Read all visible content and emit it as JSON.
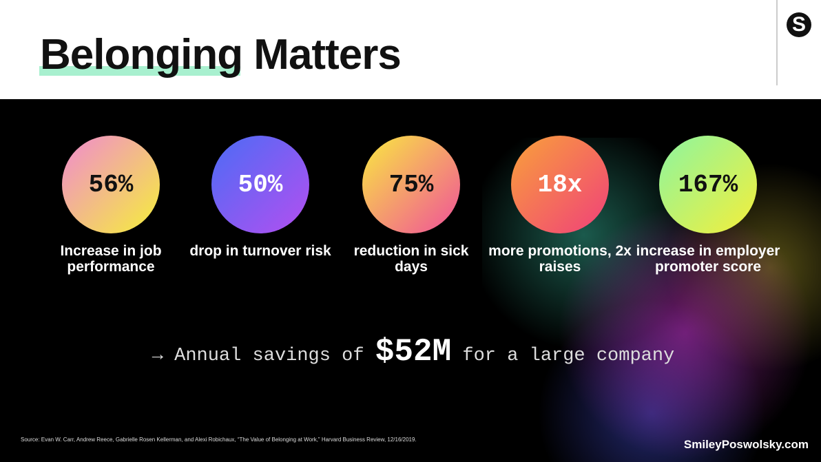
{
  "title": "Belonging Matters",
  "logo": "S",
  "stats": [
    {
      "value": "56%",
      "label": "Increase in job performance",
      "gradient": [
        "#f08ad0",
        "#f5ef3a"
      ]
    },
    {
      "value": "50%",
      "label": "drop in turnover risk",
      "gradient": [
        "#4b6cf5",
        "#b44ff0"
      ]
    },
    {
      "value": "75%",
      "label": "reduction in sick days",
      "gradient": [
        "#f9ea40",
        "#f0509a"
      ]
    },
    {
      "value": "18x",
      "label": "more promotions, 2x raises",
      "gradient": [
        "#f9a13a",
        "#f0407a"
      ]
    },
    {
      "value": "167%",
      "label": "increase in employer promoter score",
      "gradient": [
        "#8cf5a0",
        "#f5ef3a"
      ]
    }
  ],
  "savings": {
    "arrow": "→",
    "before": "Annual savings of",
    "amount": "$52M",
    "after": "for a large company"
  },
  "source": "Source: Evan W. Carr, Andrew Reece, Gabrielle Rosen Kellerman, and Alexi Robichaux, “The Value of Belonging at Work,” Harvard Business Review, 12/16/2019.",
  "website": "SmileyPoswolsky.com"
}
